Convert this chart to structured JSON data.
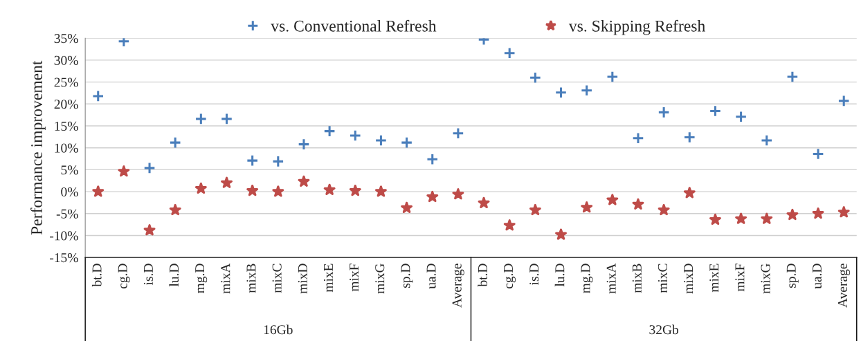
{
  "chart_data": {
    "type": "scatter",
    "ylabel": "Performance improvement",
    "categories": [
      "bt.D",
      "cg.D",
      "is.D",
      "lu.D",
      "mg.D",
      "mixA",
      "mixB",
      "mixC",
      "mixD",
      "mixE",
      "mixF",
      "mixG",
      "sp.D",
      "ua.D",
      "Average",
      "bt.D",
      "cg.D",
      "is.D",
      "lu.D",
      "mg.D",
      "mixA",
      "mixB",
      "mixC",
      "mixD",
      "mixE",
      "mixF",
      "mixG",
      "sp.D",
      "ua.D",
      "Average"
    ],
    "series": [
      {
        "name": "vs. Conventional Refresh",
        "color": "#4a7ebb",
        "marker": "cross",
        "values": [
          21.8,
          34.3,
          5.4,
          11.2,
          16.6,
          16.6,
          7.1,
          6.9,
          10.8,
          13.8,
          12.8,
          11.7,
          11.2,
          7.4,
          13.3,
          34.7,
          31.6,
          26.0,
          22.6,
          23.1,
          26.2,
          12.2,
          18.1,
          12.4,
          18.4,
          17.1,
          11.7,
          26.2,
          8.6,
          20.7
        ]
      },
      {
        "name": "vs. Skipping Refresh",
        "color": "#be4b48",
        "marker": "star",
        "values": [
          0,
          4.6,
          -8.8,
          -4.2,
          0.7,
          2.0,
          0.2,
          0,
          2.3,
          0.4,
          0.2,
          0,
          -3.7,
          -1.2,
          -0.6,
          -2.6,
          -7.7,
          -4.2,
          -9.8,
          -3.6,
          -1.9,
          -2.9,
          -4.2,
          -0.3,
          -6.4,
          -6.2,
          -6.2,
          -5.3,
          -5.0,
          -4.7
        ]
      }
    ],
    "annotations": [
      "16Gb",
      "32Gb"
    ],
    "ylim": [
      -15,
      35
    ],
    "yticks": [
      {
        "value": -15,
        "label": "-15%"
      },
      {
        "value": -10,
        "label": "-10%"
      },
      {
        "value": -5,
        "label": "-5%"
      },
      {
        "value": 0,
        "label": "0%"
      },
      {
        "value": 5,
        "label": "5%"
      },
      {
        "value": 10,
        "label": "10%"
      },
      {
        "value": 15,
        "label": "15%"
      },
      {
        "value": 20,
        "label": "20%"
      },
      {
        "value": 25,
        "label": "25%"
      },
      {
        "value": 30,
        "label": "30%"
      },
      {
        "value": 35,
        "label": "35%"
      }
    ],
    "grid": "y",
    "legend": "top"
  }
}
